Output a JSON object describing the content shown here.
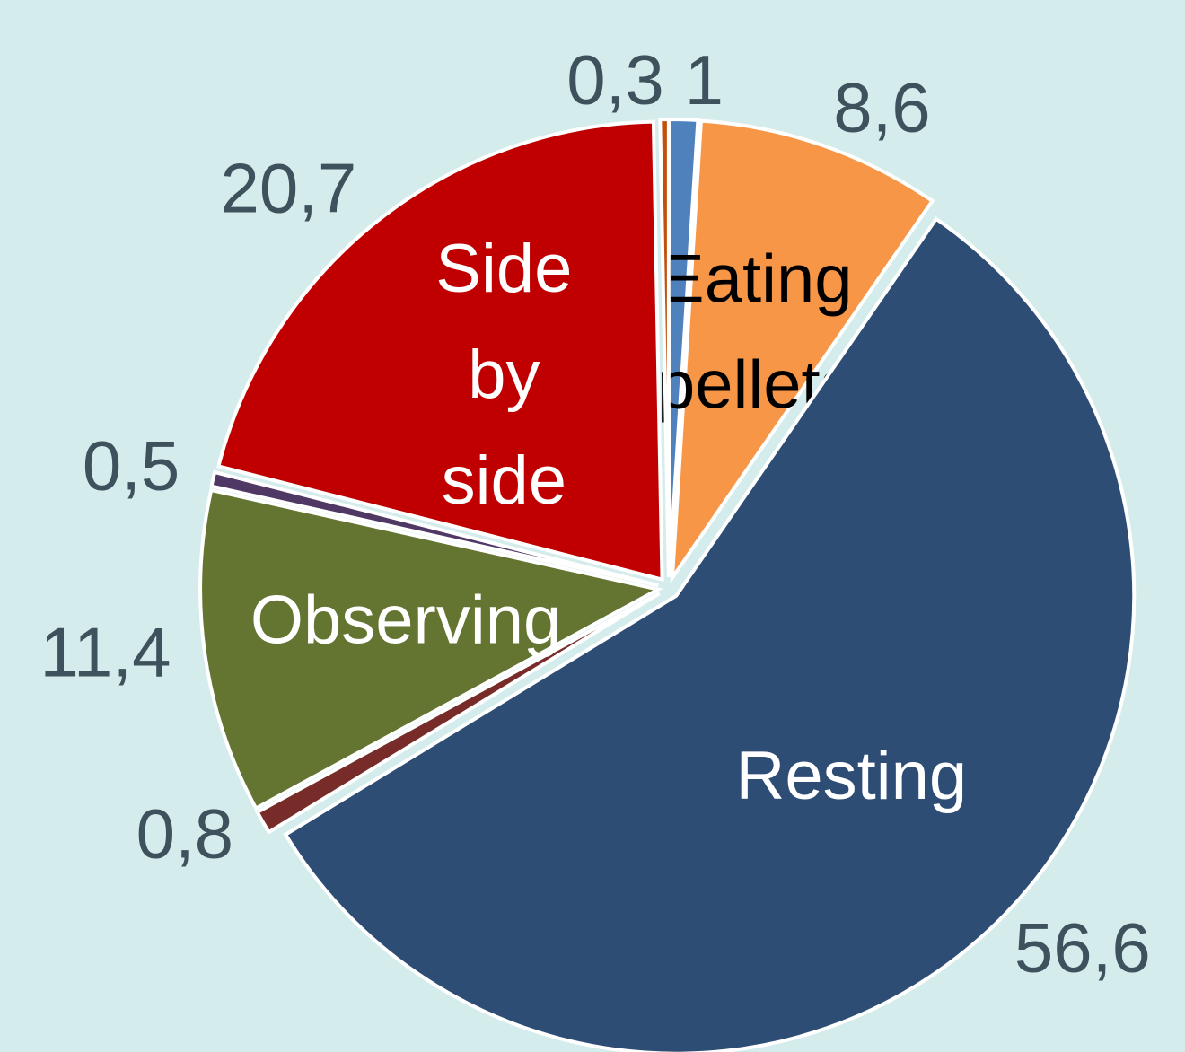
{
  "chart_data": {
    "type": "pie",
    "categories": [
      null,
      "Eating pellets",
      "Resting",
      null,
      "Observing",
      null,
      "Side by side",
      null
    ],
    "values": [
      1,
      8.6,
      56.6,
      0.8,
      11.4,
      0.5,
      20.7,
      0.3
    ],
    "value_labels": [
      "1",
      "8,6",
      "56,6",
      "0,8",
      "11,4",
      "0,5",
      "20,7",
      "0,3"
    ],
    "colors": [
      "#4f81bd",
      "#f79646",
      "#2e4d75",
      "#772c2a",
      "#637530",
      "#4f3864",
      "#c00000",
      "#c0500a"
    ],
    "label_colors": [
      "#ffffff",
      "#000000",
      "#ffffff",
      "#ffffff",
      "#ffffff",
      "#ffffff",
      "#ffffff",
      "#ffffff"
    ]
  }
}
